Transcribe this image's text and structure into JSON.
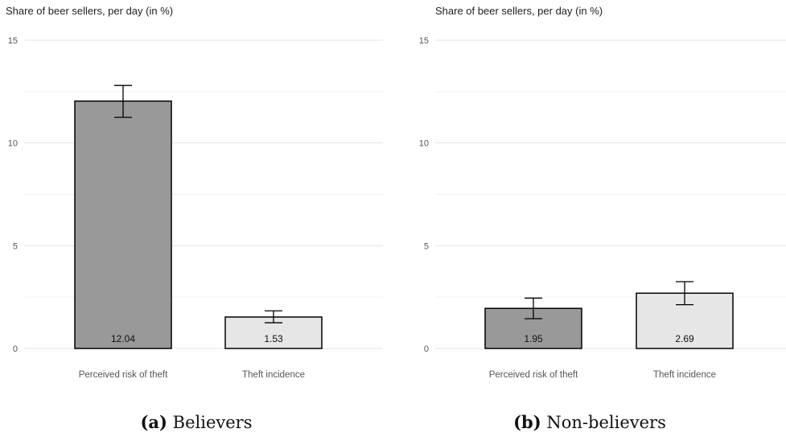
{
  "panels": [
    {
      "id": "a",
      "caption_tag": "(a)",
      "caption_text": "Believers",
      "chart_data": {
        "type": "bar",
        "title": "Share of beer sellers, per day (in %)",
        "categories": [
          "Perceived risk of theft",
          "Theft incidence"
        ],
        "values": [
          12.04,
          1.53
        ],
        "value_labels": [
          "12.04",
          "1.53"
        ],
        "error_bars": [
          [
            11.25,
            12.8
          ],
          [
            1.25,
            1.83
          ]
        ],
        "bar_colors": [
          "#999999",
          "#e6e6e6"
        ],
        "ylim": [
          0,
          15
        ],
        "yticks": [
          0,
          5,
          10,
          15
        ],
        "grid": true
      }
    },
    {
      "id": "b",
      "caption_tag": "(b)",
      "caption_text": "Non-believers",
      "chart_data": {
        "type": "bar",
        "title": "Share of beer sellers, per day (in %)",
        "categories": [
          "Perceived risk of theft",
          "Theft incidence"
        ],
        "values": [
          1.95,
          2.69
        ],
        "value_labels": [
          "1.95",
          "2.69"
        ],
        "error_bars": [
          [
            1.45,
            2.45
          ],
          [
            2.13,
            3.25
          ]
        ],
        "bar_colors": [
          "#999999",
          "#e6e6e6"
        ],
        "ylim": [
          0,
          15
        ],
        "yticks": [
          0,
          5,
          10,
          15
        ],
        "grid": true
      }
    }
  ]
}
